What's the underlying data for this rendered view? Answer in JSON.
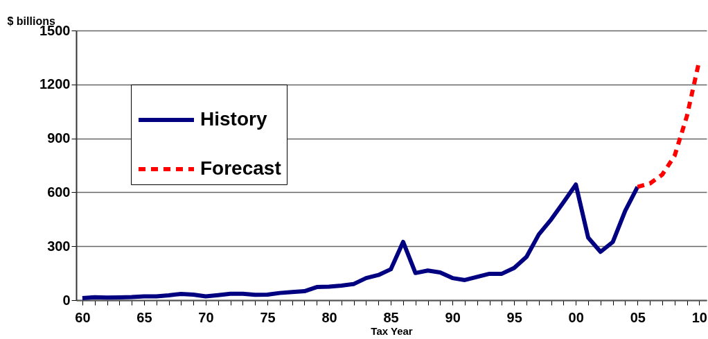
{
  "chart_data": {
    "type": "line",
    "xlabel": "Tax Year",
    "ylabel": "$ billions",
    "series": [
      {
        "name": "History",
        "color": "#000080",
        "line_style": "solid",
        "x": [
          1960,
          1961,
          1962,
          1963,
          1964,
          1965,
          1966,
          1967,
          1968,
          1969,
          1970,
          1971,
          1972,
          1973,
          1974,
          1975,
          1976,
          1977,
          1978,
          1979,
          1980,
          1981,
          1982,
          1983,
          1984,
          1985,
          1986,
          1987,
          1988,
          1989,
          1990,
          1991,
          1992,
          1993,
          1994,
          1995,
          1996,
          1997,
          1998,
          1999,
          2000,
          2001,
          2002,
          2003,
          2004,
          2005
        ],
        "values": [
          12,
          16,
          14,
          15,
          17,
          21,
          21,
          27,
          35,
          31,
          21,
          28,
          36,
          36,
          30,
          31,
          40,
          45,
          50,
          73,
          75,
          81,
          90,
          123,
          140,
          172,
          324,
          151,
          165,
          154,
          123,
          112,
          130,
          147,
          147,
          179,
          241,
          366,
          449,
          545,
          643,
          348,
          269,
          324,
          497,
          630
        ]
      },
      {
        "name": "Forecast",
        "color": "#ff0000",
        "line_style": "dashed",
        "x": [
          2005,
          2006,
          2007,
          2008,
          2009,
          2010
        ],
        "values": [
          630,
          649,
          698,
          802,
          1023,
          1330
        ]
      }
    ],
    "xlim": [
      1959.5,
      2010.6
    ],
    "xticks": [
      {
        "value": 1960,
        "label": "60"
      },
      {
        "value": 1961,
        "label": null
      },
      {
        "value": 1962,
        "label": null
      },
      {
        "value": 1963,
        "label": null
      },
      {
        "value": 1964,
        "label": null
      },
      {
        "value": 1965,
        "label": "65"
      },
      {
        "value": 1966,
        "label": null
      },
      {
        "value": 1967,
        "label": null
      },
      {
        "value": 1968,
        "label": null
      },
      {
        "value": 1969,
        "label": null
      },
      {
        "value": 1970,
        "label": "70"
      },
      {
        "value": 1971,
        "label": null
      },
      {
        "value": 1972,
        "label": null
      },
      {
        "value": 1973,
        "label": null
      },
      {
        "value": 1974,
        "label": null
      },
      {
        "value": 1975,
        "label": "75"
      },
      {
        "value": 1976,
        "label": null
      },
      {
        "value": 1977,
        "label": null
      },
      {
        "value": 1978,
        "label": null
      },
      {
        "value": 1979,
        "label": null
      },
      {
        "value": 1980,
        "label": "80"
      },
      {
        "value": 1981,
        "label": null
      },
      {
        "value": 1982,
        "label": null
      },
      {
        "value": 1983,
        "label": null
      },
      {
        "value": 1984,
        "label": null
      },
      {
        "value": 1985,
        "label": "85"
      },
      {
        "value": 1986,
        "label": null
      },
      {
        "value": 1987,
        "label": null
      },
      {
        "value": 1988,
        "label": null
      },
      {
        "value": 1989,
        "label": null
      },
      {
        "value": 1990,
        "label": "90"
      },
      {
        "value": 1991,
        "label": null
      },
      {
        "value": 1992,
        "label": null
      },
      {
        "value": 1993,
        "label": null
      },
      {
        "value": 1994,
        "label": null
      },
      {
        "value": 1995,
        "label": "95"
      },
      {
        "value": 1996,
        "label": null
      },
      {
        "value": 1997,
        "label": null
      },
      {
        "value": 1998,
        "label": null
      },
      {
        "value": 1999,
        "label": null
      },
      {
        "value": 2000,
        "label": "00"
      },
      {
        "value": 2001,
        "label": null
      },
      {
        "value": 2002,
        "label": null
      },
      {
        "value": 2003,
        "label": null
      },
      {
        "value": 2004,
        "label": null
      },
      {
        "value": 2005,
        "label": "05"
      },
      {
        "value": 2006,
        "label": null
      },
      {
        "value": 2007,
        "label": null
      },
      {
        "value": 2008,
        "label": null
      },
      {
        "value": 2009,
        "label": null
      },
      {
        "value": 2010,
        "label": "10"
      }
    ],
    "ylim": [
      0,
      1500
    ],
    "yticks": [
      0,
      300,
      600,
      900,
      1200,
      1500
    ],
    "grid": "y",
    "legend": "top left",
    "marker": "none"
  }
}
